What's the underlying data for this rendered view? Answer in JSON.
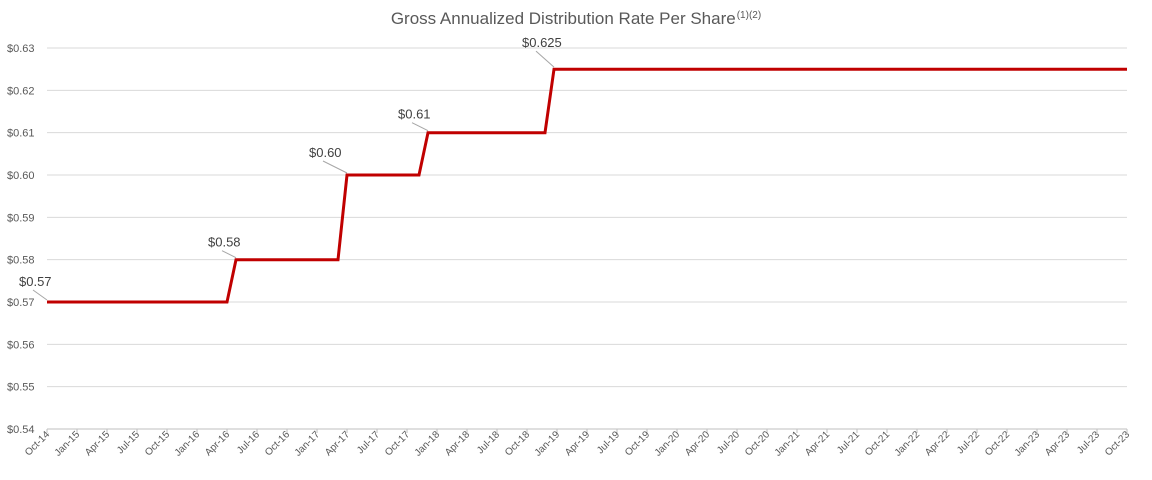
{
  "chart_data": {
    "type": "line",
    "title": "Gross Annualized Distribution Rate Per Share",
    "title_superscript": "(1)(2)",
    "xlabel": "",
    "ylabel": "",
    "ylim": [
      0.54,
      0.63
    ],
    "y_ticks": [
      "$0.63",
      "$0.62",
      "$0.61",
      "$0.60",
      "$0.59",
      "$0.58",
      "$0.57",
      "$0.56",
      "$0.55",
      "$0.54"
    ],
    "y_tick_values": [
      0.63,
      0.62,
      0.61,
      0.6,
      0.59,
      0.58,
      0.57,
      0.56,
      0.55,
      0.54
    ],
    "categories": [
      "Oct-14",
      "Jan-15",
      "Apr-15",
      "Jul-15",
      "Oct-15",
      "Jan-16",
      "Apr-16",
      "Jul-16",
      "Oct-16",
      "Jan-17",
      "Apr-17",
      "Jul-17",
      "Oct-17",
      "Jan-18",
      "Apr-18",
      "Jul-18",
      "Oct-18",
      "Jan-19",
      "Apr-19",
      "Jul-19",
      "Oct-19",
      "Jan-20",
      "Apr-20",
      "Jul-20",
      "Oct-20",
      "Jan-21",
      "Apr-21",
      "Jul-21",
      "Oct-21",
      "Jan-22",
      "Apr-22",
      "Jul-22",
      "Oct-22",
      "Jan-23",
      "Apr-23",
      "Jul-23",
      "Oct-23"
    ],
    "grid": true,
    "series": [
      {
        "name": "Gross Annualized Distribution Rate Per Share",
        "color": "#c00000",
        "x": [
          0,
          6,
          6.3,
          9.7,
          10,
          12.4,
          12.7,
          16.6,
          16.9,
          36
        ],
        "values": [
          0.57,
          0.57,
          0.58,
          0.58,
          0.6,
          0.6,
          0.61,
          0.61,
          0.625,
          0.625
        ]
      }
    ],
    "annotations": [
      {
        "text": "$0.57",
        "x": 0,
        "y": 0.57
      },
      {
        "text": "$0.58",
        "x": 6.3,
        "y": 0.58
      },
      {
        "text": "$0.60",
        "x": 10,
        "y": 0.6
      },
      {
        "text": "$0.61",
        "x": 12.7,
        "y": 0.61
      },
      {
        "text": "$0.625",
        "x": 16.9,
        "y": 0.625
      }
    ]
  }
}
